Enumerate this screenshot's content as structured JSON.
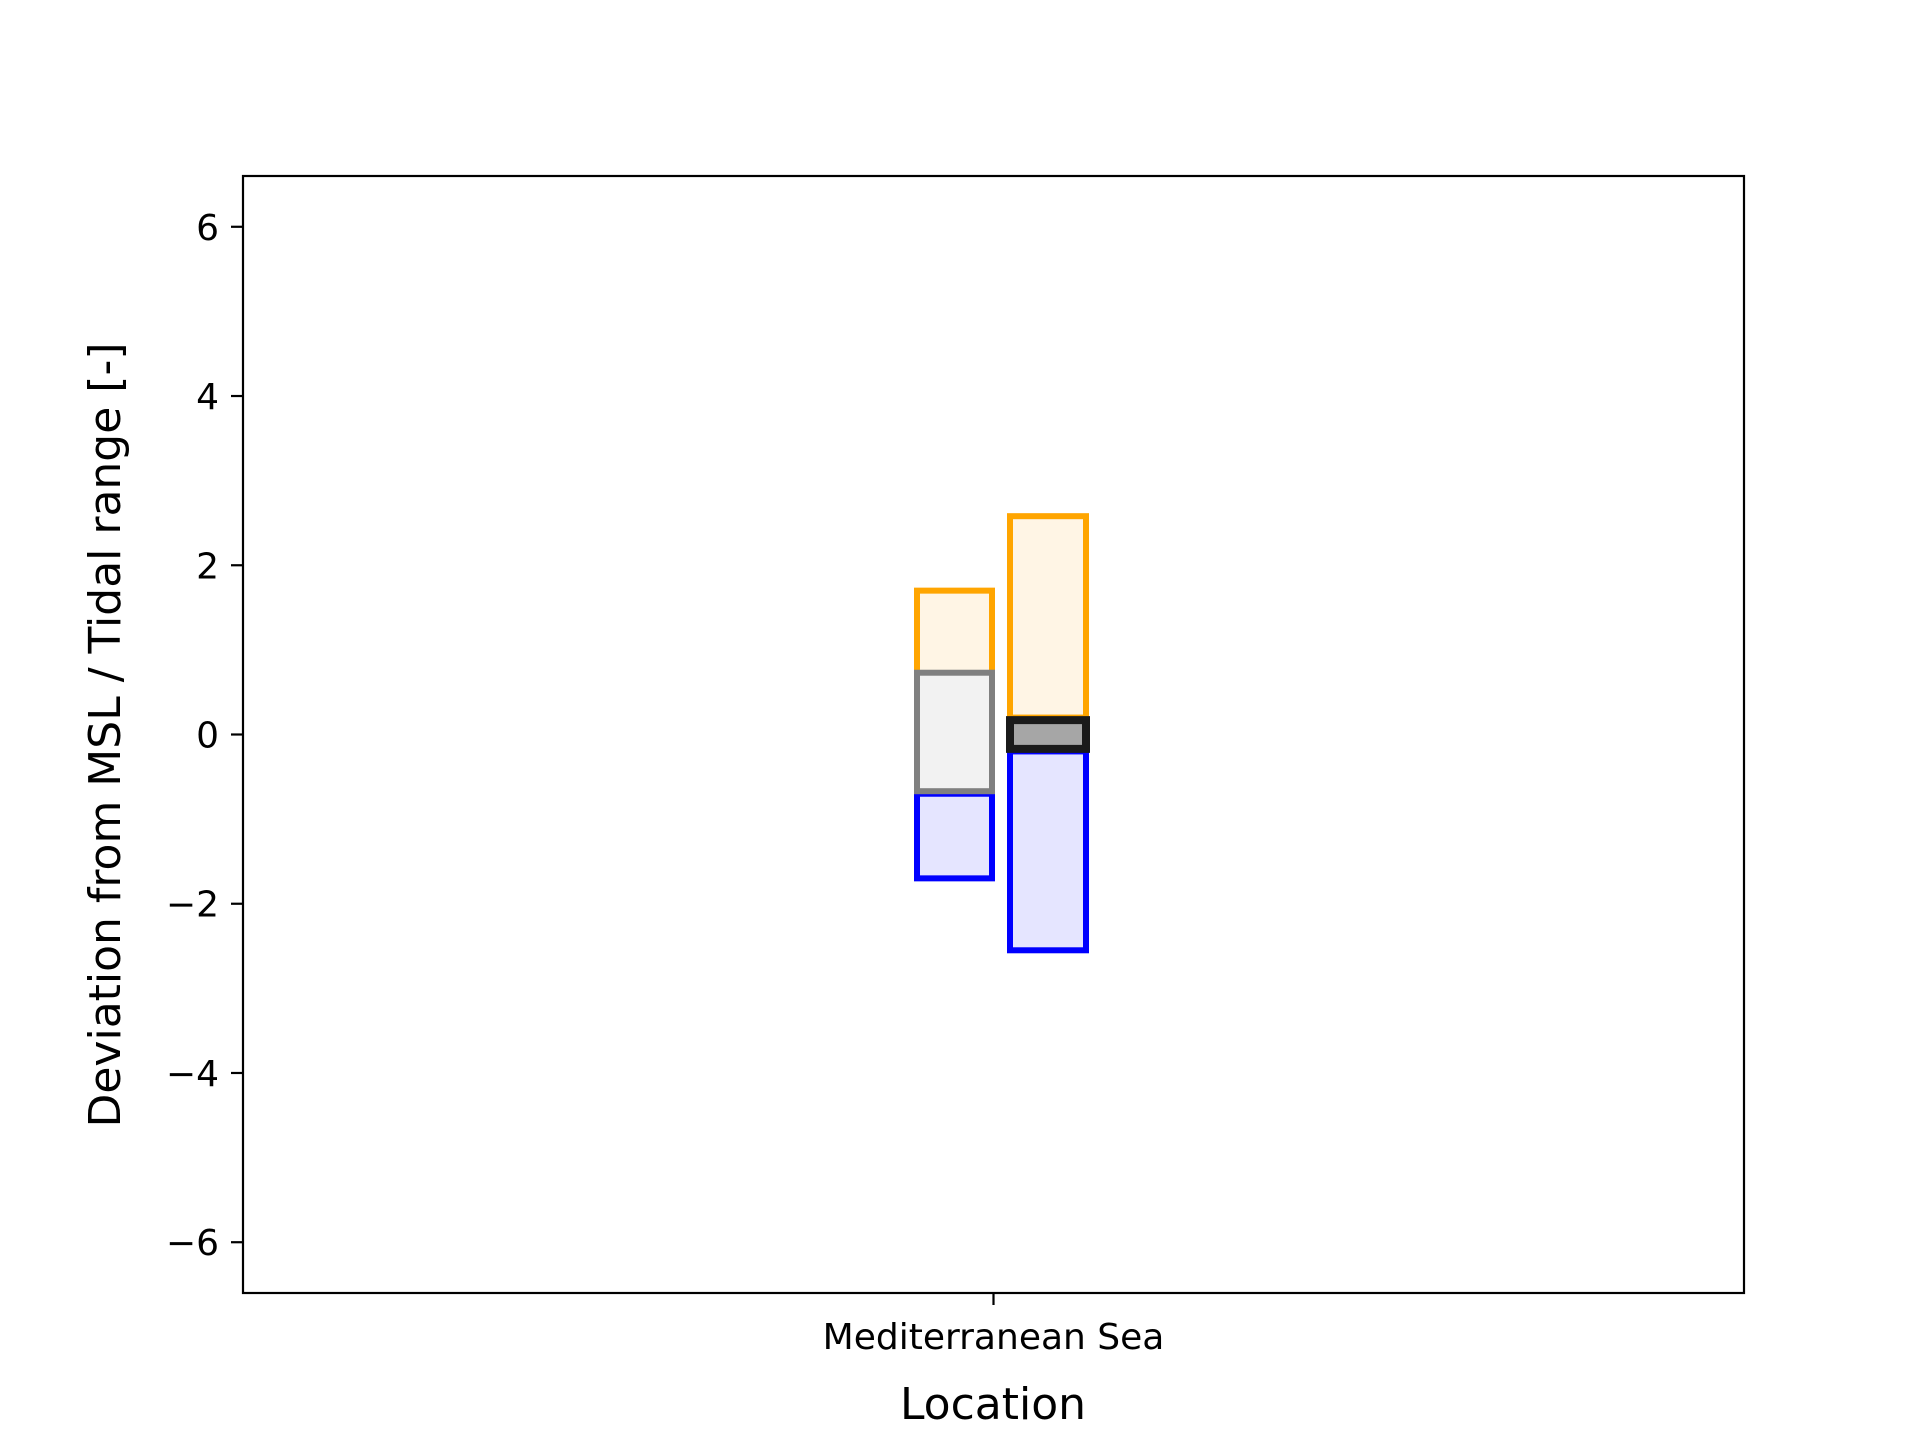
{
  "chart_data": {
    "type": "bar",
    "categories": [
      "Mediterranean Sea"
    ],
    "xlabel": "Location",
    "ylabel": "Deviation from MSL / Tidal range [-]",
    "ylim": [
      -6.6,
      6.6
    ],
    "yticks": [
      6,
      4,
      2,
      0,
      -2,
      -4,
      -6
    ],
    "ytick_labels": [
      "6",
      "4",
      "2",
      "0",
      "−2",
      "−4",
      "−6"
    ],
    "grid": false,
    "boxes": [
      {
        "group": 1,
        "role": "upper",
        "bottom": 0.7,
        "top": 1.7,
        "edge": "#ffa500",
        "fill": "#fff5e5"
      },
      {
        "group": 1,
        "role": "lower",
        "bottom": -1.7,
        "top": -0.7,
        "edge": "#0000ff",
        "fill": "#e5e5ff"
      },
      {
        "group": 1,
        "role": "center",
        "bottom": -0.67,
        "top": 0.73,
        "edge": "#808080",
        "fill": "#f2f2f2"
      },
      {
        "group": 2,
        "role": "upper",
        "bottom": 0.2,
        "top": 2.58,
        "edge": "#ffa500",
        "fill": "#fff5e5"
      },
      {
        "group": 2,
        "role": "lower",
        "bottom": -2.55,
        "top": -0.2,
        "edge": "#0000ff",
        "fill": "#e5e5ff"
      },
      {
        "group": 2,
        "role": "center",
        "bottom": -0.17,
        "top": 0.17,
        "edge": "#1a1a1a",
        "fill": "#a6a6a6"
      }
    ]
  }
}
